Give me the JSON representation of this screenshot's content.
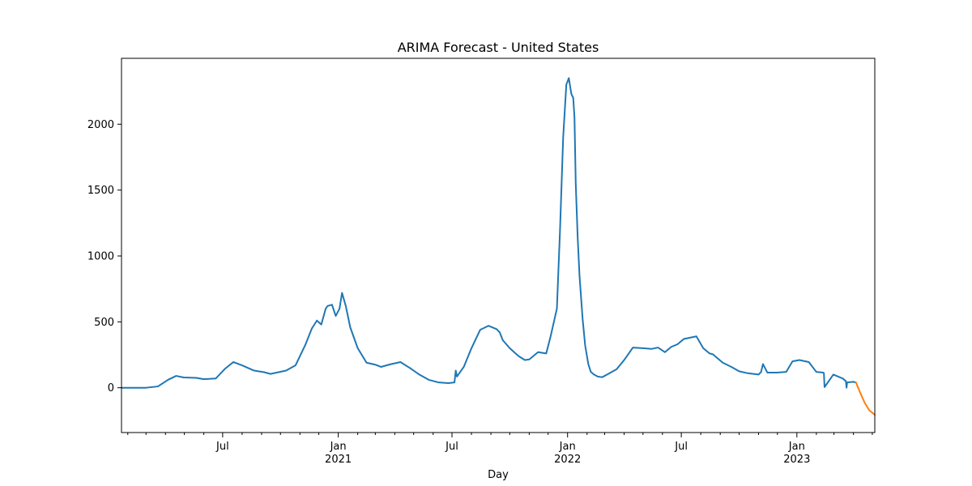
{
  "chart_data": {
    "type": "line",
    "title": "ARIMA Forecast - United States",
    "xlabel": "Day",
    "ylabel": "",
    "xlim": [
      "2020-01-22",
      "2023-05-05"
    ],
    "ylim": [
      -340,
      2500
    ],
    "yticks": [
      0,
      500,
      1000,
      1500,
      2000
    ],
    "xticks": [
      {
        "date": "2020-07-01",
        "label": "Jul",
        "sublabel": ""
      },
      {
        "date": "2021-01-01",
        "label": "Jan",
        "sublabel": "2021"
      },
      {
        "date": "2021-07-01",
        "label": "Jul",
        "sublabel": ""
      },
      {
        "date": "2022-01-01",
        "label": "Jan",
        "sublabel": "2022"
      },
      {
        "date": "2022-07-01",
        "label": "Jul",
        "sublabel": ""
      },
      {
        "date": "2023-01-01",
        "label": "Jan",
        "sublabel": "2023"
      }
    ],
    "minor_tick_months": [
      "2020-02-01",
      "2020-03-01",
      "2020-04-01",
      "2020-05-01",
      "2020-06-01",
      "2020-08-01",
      "2020-09-01",
      "2020-10-01",
      "2020-11-01",
      "2020-12-01",
      "2021-02-01",
      "2021-03-01",
      "2021-04-01",
      "2021-05-01",
      "2021-06-01",
      "2021-08-01",
      "2021-09-01",
      "2021-10-01",
      "2021-11-01",
      "2021-12-01",
      "2022-02-01",
      "2022-03-01",
      "2022-04-01",
      "2022-05-01",
      "2022-06-01",
      "2022-08-01",
      "2022-09-01",
      "2022-10-01",
      "2022-11-01",
      "2022-12-01",
      "2023-02-01",
      "2023-03-01",
      "2023-04-01",
      "2023-05-01"
    ],
    "grid": false,
    "series": [
      {
        "color": "#1f77b4",
        "x": [
          "2020-01-22",
          "2020-03-01",
          "2020-03-20",
          "2020-04-05",
          "2020-04-18",
          "2020-04-30",
          "2020-05-20",
          "2020-06-01",
          "2020-06-20",
          "2020-07-05",
          "2020-07-18",
          "2020-08-01",
          "2020-08-20",
          "2020-09-05",
          "2020-09-15",
          "2020-09-25",
          "2020-10-10",
          "2020-10-25",
          "2020-11-10",
          "2020-11-20",
          "2020-11-28",
          "2020-12-05",
          "2020-12-12",
          "2020-12-15",
          "2020-12-22",
          "2020-12-28",
          "2021-01-03",
          "2021-01-07",
          "2021-01-13",
          "2021-01-20",
          "2021-02-01",
          "2021-02-15",
          "2021-03-01",
          "2021-03-10",
          "2021-03-25",
          "2021-04-10",
          "2021-04-25",
          "2021-05-10",
          "2021-05-25",
          "2021-06-10",
          "2021-06-25",
          "2021-07-05",
          "2021-07-07",
          "2021-07-09",
          "2021-07-20",
          "2021-08-01",
          "2021-08-15",
          "2021-08-28",
          "2021-09-10",
          "2021-09-15",
          "2021-09-20",
          "2021-10-01",
          "2021-10-15",
          "2021-10-25",
          "2021-11-01",
          "2021-11-15",
          "2021-11-28",
          "2021-12-05",
          "2021-12-15",
          "2021-12-20",
          "2021-12-25",
          "2021-12-30",
          "2022-01-03",
          "2022-01-07",
          "2022-01-10",
          "2022-01-12",
          "2022-01-14",
          "2022-01-17",
          "2022-01-20",
          "2022-01-25",
          "2022-01-29",
          "2022-02-03",
          "2022-02-07",
          "2022-02-12",
          "2022-02-18",
          "2022-02-25",
          "2022-03-05",
          "2022-03-20",
          "2022-04-01",
          "2022-04-15",
          "2022-05-01",
          "2022-05-15",
          "2022-05-25",
          "2022-06-05",
          "2022-06-15",
          "2022-06-25",
          "2022-07-05",
          "2022-07-15",
          "2022-07-25",
          "2022-08-05",
          "2022-08-15",
          "2022-08-20",
          "2022-09-05",
          "2022-09-20",
          "2022-10-01",
          "2022-10-15",
          "2022-11-01",
          "2022-11-05",
          "2022-11-08",
          "2022-11-15",
          "2022-11-30",
          "2022-12-15",
          "2022-12-25",
          "2023-01-05",
          "2023-01-20",
          "2023-02-01",
          "2023-02-12",
          "2023-02-13",
          "2023-02-14",
          "2023-02-28",
          "2023-03-15",
          "2023-03-20",
          "2023-03-21",
          "2023-03-22",
          "2023-04-01",
          "2023-04-05"
        ],
        "y": [
          0,
          0,
          10,
          60,
          90,
          78,
          75,
          65,
          70,
          145,
          195,
          170,
          130,
          118,
          105,
          115,
          130,
          170,
          330,
          450,
          510,
          480,
          600,
          620,
          630,
          545,
          600,
          720,
          620,
          460,
          300,
          190,
          175,
          158,
          178,
          195,
          150,
          100,
          60,
          40,
          35,
          40,
          130,
          85,
          160,
          300,
          440,
          470,
          445,
          420,
          360,
          300,
          240,
          210,
          215,
          270,
          260,
          390,
          600,
          1200,
          1900,
          2300,
          2350,
          2230,
          2200,
          2050,
          1550,
          1150,
          850,
          520,
          320,
          180,
          120,
          100,
          85,
          80,
          100,
          140,
          210,
          305,
          300,
          295,
          305,
          270,
          310,
          330,
          370,
          380,
          390,
          300,
          260,
          255,
          190,
          155,
          125,
          110,
          100,
          120,
          180,
          115,
          115,
          120,
          200,
          210,
          195,
          120,
          115,
          110,
          5,
          100,
          70,
          50,
          0,
          40,
          45,
          40
        ]
      },
      {
        "color": "#ff7f0e",
        "x": [
          "2023-04-05",
          "2023-04-12",
          "2023-04-19",
          "2023-04-26",
          "2023-05-05"
        ],
        "y": [
          40,
          -40,
          -115,
          -170,
          -205
        ]
      }
    ]
  }
}
